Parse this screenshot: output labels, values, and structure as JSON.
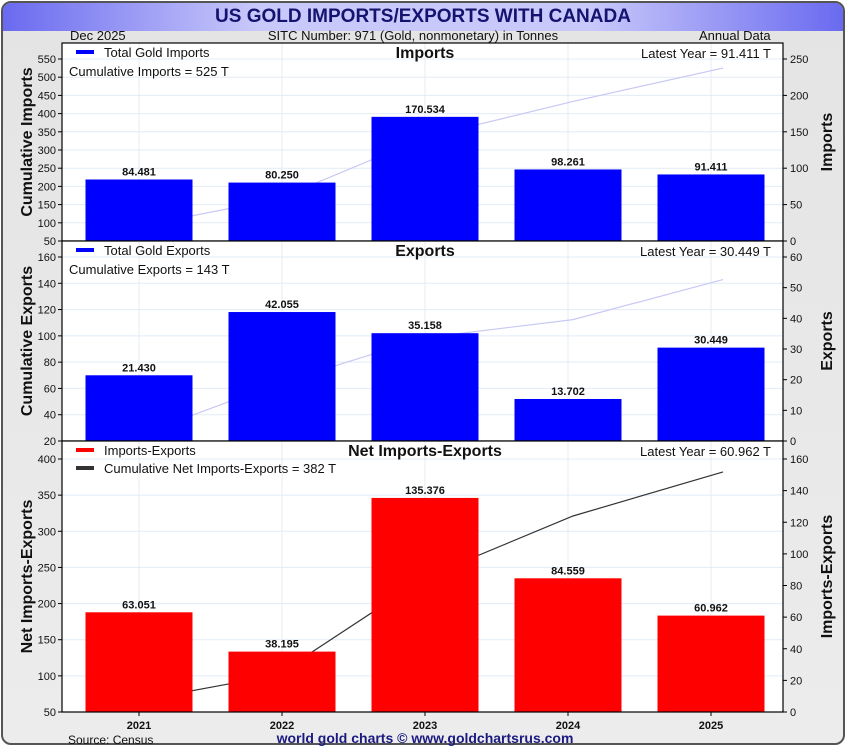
{
  "title": "US GOLD IMPORTS/EXPORTS WITH CANADA",
  "subheader": {
    "date": "Dec  2025",
    "sitc": "SITC Number: 971 (Gold, nonmonetary) in Tonnes",
    "frequency": "Annual Data"
  },
  "footer": {
    "source": "Source: Census",
    "watermark": "world gold charts © www.goldchartsrus.com"
  },
  "colors": {
    "imports_bar": "#0000ff",
    "exports_bar": "#0000ff",
    "net_bar": "#ff0000",
    "cumulative_line_light": "#c8c8f4",
    "cumulative_line_dark": "#333333",
    "title_text": "#141470"
  },
  "chart_data": [
    {
      "type": "bar",
      "title": "Imports",
      "categories": [
        "2021",
        "2022",
        "2023",
        "2024",
        "2025"
      ],
      "legend": [
        "Total Gold Imports"
      ],
      "annotations": [
        "Cumulative Imports = 525 T",
        "Latest Year = 91.411 T"
      ],
      "series": [
        {
          "name": "Total Gold Imports",
          "axis": "right",
          "type": "bar",
          "values": [
            84.481,
            80.25,
            170.534,
            98.261,
            91.411
          ],
          "labels": [
            "84.481",
            "80.250",
            "170.534",
            "98.261",
            "91.411"
          ]
        },
        {
          "name": "Cumulative Imports",
          "axis": "left",
          "type": "line",
          "values": [
            84.481,
            164.731,
            335.265,
            433.526,
            524.937
          ]
        }
      ],
      "ylabel_left": "Cumulative Imports",
      "ylabel_right": "Imports",
      "ylim_left": [
        50,
        550
      ],
      "yticks_left": [
        "50",
        "100",
        "150",
        "200",
        "250",
        "300",
        "350",
        "400",
        "450",
        "500",
        "550"
      ],
      "ylim_right": [
        0,
        250
      ],
      "yticks_right": [
        "0",
        "50",
        "100",
        "150",
        "200",
        "250"
      ],
      "grid": true,
      "legend_position": "top-left"
    },
    {
      "type": "bar",
      "title": "Exports",
      "categories": [
        "2021",
        "2022",
        "2023",
        "2024",
        "2025"
      ],
      "legend": [
        "Total Gold Exports"
      ],
      "annotations": [
        "Cumulative Exports = 143 T",
        "Latest Year = 30.449 T"
      ],
      "series": [
        {
          "name": "Total Gold Exports",
          "axis": "right",
          "type": "bar",
          "values": [
            21.43,
            42.055,
            35.158,
            13.702,
            30.449
          ],
          "labels": [
            "21.430",
            "42.055",
            "35.158",
            "13.702",
            "30.449"
          ]
        },
        {
          "name": "Cumulative Exports",
          "axis": "left",
          "type": "line",
          "values": [
            21.43,
            63.485,
            98.643,
            112.345,
            142.794
          ]
        }
      ],
      "ylabel_left": "Cumulative Exports",
      "ylabel_right": "Exports",
      "ylim_left": [
        20,
        160
      ],
      "yticks_left": [
        "20",
        "40",
        "60",
        "80",
        "100",
        "120",
        "140",
        "160"
      ],
      "ylim_right": [
        0,
        60
      ],
      "yticks_right": [
        "0",
        "10",
        "20",
        "30",
        "40",
        "50",
        "60"
      ],
      "grid": true,
      "legend_position": "top-left"
    },
    {
      "type": "bar",
      "title": "Net Imports-Exports",
      "categories": [
        "2021",
        "2022",
        "2023",
        "2024",
        "2025"
      ],
      "legend": [
        "Imports-Exports",
        "Cumulative Net Imports-Exports = 382 T"
      ],
      "annotations": [
        "Latest Year = 60.962 T"
      ],
      "series": [
        {
          "name": "Imports-Exports",
          "axis": "right",
          "type": "bar",
          "values": [
            63.051,
            38.195,
            135.376,
            84.559,
            60.962
          ],
          "labels": [
            "63.051",
            "38.195",
            "135.376",
            "84.559",
            "60.962"
          ]
        },
        {
          "name": "Cumulative Net Imports-Exports",
          "axis": "left",
          "type": "line",
          "values": [
            63.051,
            101.246,
            236.622,
            321.181,
            382.143
          ]
        }
      ],
      "ylabel_left": "Net Imports-Exports",
      "ylabel_right": "Imports-Exports",
      "ylim_left": [
        50,
        400
      ],
      "yticks_left": [
        "50",
        "100",
        "150",
        "200",
        "250",
        "300",
        "350",
        "400"
      ],
      "ylim_right": [
        0,
        160
      ],
      "yticks_right": [
        "0",
        "20",
        "40",
        "60",
        "80",
        "100",
        "120",
        "140",
        "160"
      ],
      "xticks": [
        "2021",
        "2022",
        "2023",
        "2024",
        "2025"
      ],
      "grid": true,
      "legend_position": "top-left"
    }
  ]
}
